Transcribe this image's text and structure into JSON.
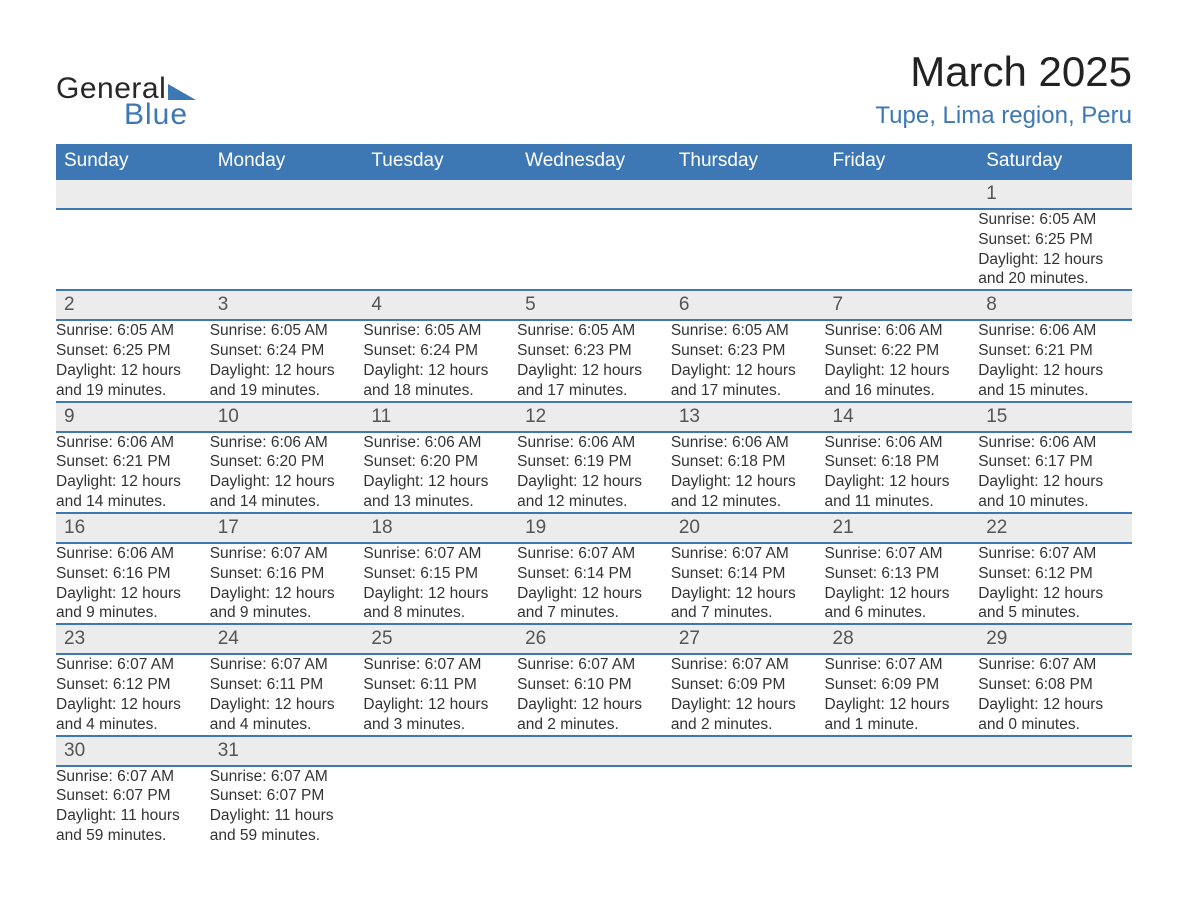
{
  "logo": {
    "line1": "General",
    "line2": "Blue",
    "shape_color": "#3e78b4",
    "text1_color": "#272727"
  },
  "title": "March 2025",
  "location": "Tupe, Lima region, Peru",
  "colors": {
    "header_bg": "#3e78b4",
    "header_text": "#ffffff",
    "daynum_bg": "#ececec",
    "row_border": "#3e78b4",
    "text": "#333333",
    "accent": "#3e78b4"
  },
  "typography": {
    "title_fontsize": 42,
    "location_fontsize": 24,
    "weekday_fontsize": 19,
    "daynum_fontsize": 19,
    "body_fontsize": 15.5,
    "font_family": "Arial"
  },
  "weekdays": [
    "Sunday",
    "Monday",
    "Tuesday",
    "Wednesday",
    "Thursday",
    "Friday",
    "Saturday"
  ],
  "labels": {
    "sunrise": "Sunrise:",
    "sunset": "Sunset:",
    "daylight": "Daylight:"
  },
  "weeks": [
    [
      null,
      null,
      null,
      null,
      null,
      null,
      {
        "d": "1",
        "sr": "6:05 AM",
        "ss": "6:25 PM",
        "dl": "12 hours and 20 minutes."
      }
    ],
    [
      {
        "d": "2",
        "sr": "6:05 AM",
        "ss": "6:25 PM",
        "dl": "12 hours and 19 minutes."
      },
      {
        "d": "3",
        "sr": "6:05 AM",
        "ss": "6:24 PM",
        "dl": "12 hours and 19 minutes."
      },
      {
        "d": "4",
        "sr": "6:05 AM",
        "ss": "6:24 PM",
        "dl": "12 hours and 18 minutes."
      },
      {
        "d": "5",
        "sr": "6:05 AM",
        "ss": "6:23 PM",
        "dl": "12 hours and 17 minutes."
      },
      {
        "d": "6",
        "sr": "6:05 AM",
        "ss": "6:23 PM",
        "dl": "12 hours and 17 minutes."
      },
      {
        "d": "7",
        "sr": "6:06 AM",
        "ss": "6:22 PM",
        "dl": "12 hours and 16 minutes."
      },
      {
        "d": "8",
        "sr": "6:06 AM",
        "ss": "6:21 PM",
        "dl": "12 hours and 15 minutes."
      }
    ],
    [
      {
        "d": "9",
        "sr": "6:06 AM",
        "ss": "6:21 PM",
        "dl": "12 hours and 14 minutes."
      },
      {
        "d": "10",
        "sr": "6:06 AM",
        "ss": "6:20 PM",
        "dl": "12 hours and 14 minutes."
      },
      {
        "d": "11",
        "sr": "6:06 AM",
        "ss": "6:20 PM",
        "dl": "12 hours and 13 minutes."
      },
      {
        "d": "12",
        "sr": "6:06 AM",
        "ss": "6:19 PM",
        "dl": "12 hours and 12 minutes."
      },
      {
        "d": "13",
        "sr": "6:06 AM",
        "ss": "6:18 PM",
        "dl": "12 hours and 12 minutes."
      },
      {
        "d": "14",
        "sr": "6:06 AM",
        "ss": "6:18 PM",
        "dl": "12 hours and 11 minutes."
      },
      {
        "d": "15",
        "sr": "6:06 AM",
        "ss": "6:17 PM",
        "dl": "12 hours and 10 minutes."
      }
    ],
    [
      {
        "d": "16",
        "sr": "6:06 AM",
        "ss": "6:16 PM",
        "dl": "12 hours and 9 minutes."
      },
      {
        "d": "17",
        "sr": "6:07 AM",
        "ss": "6:16 PM",
        "dl": "12 hours and 9 minutes."
      },
      {
        "d": "18",
        "sr": "6:07 AM",
        "ss": "6:15 PM",
        "dl": "12 hours and 8 minutes."
      },
      {
        "d": "19",
        "sr": "6:07 AM",
        "ss": "6:14 PM",
        "dl": "12 hours and 7 minutes."
      },
      {
        "d": "20",
        "sr": "6:07 AM",
        "ss": "6:14 PM",
        "dl": "12 hours and 7 minutes."
      },
      {
        "d": "21",
        "sr": "6:07 AM",
        "ss": "6:13 PM",
        "dl": "12 hours and 6 minutes."
      },
      {
        "d": "22",
        "sr": "6:07 AM",
        "ss": "6:12 PM",
        "dl": "12 hours and 5 minutes."
      }
    ],
    [
      {
        "d": "23",
        "sr": "6:07 AM",
        "ss": "6:12 PM",
        "dl": "12 hours and 4 minutes."
      },
      {
        "d": "24",
        "sr": "6:07 AM",
        "ss": "6:11 PM",
        "dl": "12 hours and 4 minutes."
      },
      {
        "d": "25",
        "sr": "6:07 AM",
        "ss": "6:11 PM",
        "dl": "12 hours and 3 minutes."
      },
      {
        "d": "26",
        "sr": "6:07 AM",
        "ss": "6:10 PM",
        "dl": "12 hours and 2 minutes."
      },
      {
        "d": "27",
        "sr": "6:07 AM",
        "ss": "6:09 PM",
        "dl": "12 hours and 2 minutes."
      },
      {
        "d": "28",
        "sr": "6:07 AM",
        "ss": "6:09 PM",
        "dl": "12 hours and 1 minute."
      },
      {
        "d": "29",
        "sr": "6:07 AM",
        "ss": "6:08 PM",
        "dl": "12 hours and 0 minutes."
      }
    ],
    [
      {
        "d": "30",
        "sr": "6:07 AM",
        "ss": "6:07 PM",
        "dl": "11 hours and 59 minutes."
      },
      {
        "d": "31",
        "sr": "6:07 AM",
        "ss": "6:07 PM",
        "dl": "11 hours and 59 minutes."
      },
      null,
      null,
      null,
      null,
      null
    ]
  ]
}
